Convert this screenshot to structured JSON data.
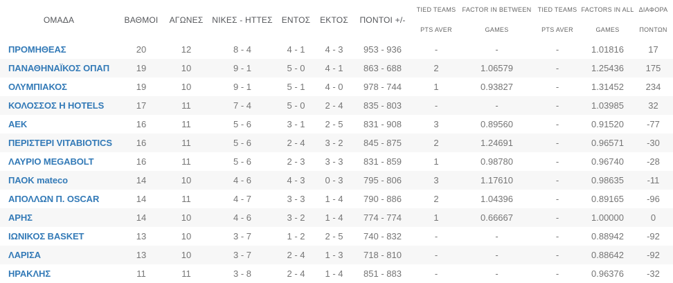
{
  "colors": {
    "team-link": "#337ab7",
    "value-text": "#757575",
    "header-text": "#54565a",
    "subheader-text": "#666666",
    "stripe": "#f7f7f7"
  },
  "table": {
    "columns": [
      {
        "key": "team",
        "label": "ΟΜΑΔΑ"
      },
      {
        "key": "points",
        "label": "ΒΑΘΜΟΙ"
      },
      {
        "key": "games",
        "label": "ΑΓΩΝΕΣ"
      },
      {
        "key": "wins-losses",
        "label": "ΝΙΚΕΣ - ΗΤΤΕΣ"
      },
      {
        "key": "home",
        "label": "ΕΝΤΟΣ"
      },
      {
        "key": "away",
        "label": "ΕΚΤΟΣ"
      },
      {
        "key": "points-plus-minus",
        "label": "ΠΟΝΤΟΙ +/-"
      },
      {
        "key": "tied-teams-pts-aver-1",
        "label": "TIED TEAMS",
        "sub": "PTS AVER"
      },
      {
        "key": "factor-in-between-games",
        "label": "FACTOR IN BETWEEN",
        "sub": "GAMES"
      },
      {
        "key": "tied-teams-pts-aver-2",
        "label": "TIED TEAMS",
        "sub": "PTS AVER"
      },
      {
        "key": "factors-in-all-games",
        "label": "FACTORS IN ALL",
        "sub": "GAMES"
      },
      {
        "key": "point-difference",
        "label": "ΔΙΑΦΟΡΑ",
        "sub": "ΠΟΝΤΩΝ"
      }
    ],
    "rows": [
      [
        "ΠΡΟΜΗΘΕΑΣ",
        "20",
        "12",
        "8 - 4",
        "4 - 1",
        "4 - 3",
        "953 - 936",
        "-",
        "-",
        "-",
        "1.01816",
        "17"
      ],
      [
        "ΠΑΝΑΘΗΝΑΪΚΟΣ ΟΠΑΠ",
        "19",
        "10",
        "9 - 1",
        "5 - 0",
        "4 - 1",
        "863 - 688",
        "2",
        "1.06579",
        "-",
        "1.25436",
        "175"
      ],
      [
        "ΟΛΥΜΠΙΑΚΟΣ",
        "19",
        "10",
        "9 - 1",
        "5 - 1",
        "4 - 0",
        "978 - 744",
        "1",
        "0.93827",
        "-",
        "1.31452",
        "234"
      ],
      [
        "ΚΟΛΟΣΣΟΣ Η HOTELS",
        "17",
        "11",
        "7 - 4",
        "5 - 0",
        "2 - 4",
        "835 - 803",
        "-",
        "-",
        "-",
        "1.03985",
        "32"
      ],
      [
        "ΑΕΚ",
        "16",
        "11",
        "5 - 6",
        "3 - 1",
        "2 - 5",
        "831 - 908",
        "3",
        "0.89560",
        "-",
        "0.91520",
        "-77"
      ],
      [
        "ΠΕΡΙΣΤΕΡΙ VITABIOTICS",
        "16",
        "11",
        "5 - 6",
        "2 - 4",
        "3 - 2",
        "845 - 875",
        "2",
        "1.24691",
        "-",
        "0.96571",
        "-30"
      ],
      [
        "ΛΑΥΡΙΟ MEGABOLT",
        "16",
        "11",
        "5 - 6",
        "2 - 3",
        "3 - 3",
        "831 - 859",
        "1",
        "0.98780",
        "-",
        "0.96740",
        "-28"
      ],
      [
        "ΠΑΟΚ mateco",
        "14",
        "10",
        "4 - 6",
        "4 - 3",
        "0 - 3",
        "795 - 806",
        "3",
        "1.17610",
        "-",
        "0.98635",
        "-11"
      ],
      [
        "ΑΠΟΛΛΩΝ Π. OSCAR",
        "14",
        "11",
        "4 - 7",
        "3 - 3",
        "1 - 4",
        "790 - 886",
        "2",
        "1.04396",
        "-",
        "0.89165",
        "-96"
      ],
      [
        "ΑΡΗΣ",
        "14",
        "10",
        "4 - 6",
        "3 - 2",
        "1 - 4",
        "774 - 774",
        "1",
        "0.66667",
        "-",
        "1.00000",
        "0"
      ],
      [
        "ΙΩΝΙΚΟΣ BASKET",
        "13",
        "10",
        "3 - 7",
        "1 - 2",
        "2 - 5",
        "740 - 832",
        "-",
        "-",
        "-",
        "0.88942",
        "-92"
      ],
      [
        "ΛΑΡΙΣΑ",
        "13",
        "10",
        "3 - 7",
        "2 - 4",
        "1 - 3",
        "718 - 810",
        "-",
        "-",
        "-",
        "0.88642",
        "-92"
      ],
      [
        "ΗΡΑΚΛΗΣ",
        "11",
        "11",
        "3 - 8",
        "2 - 4",
        "1 - 4",
        "851 - 883",
        "-",
        "-",
        "-",
        "0.96376",
        "-32"
      ]
    ]
  }
}
